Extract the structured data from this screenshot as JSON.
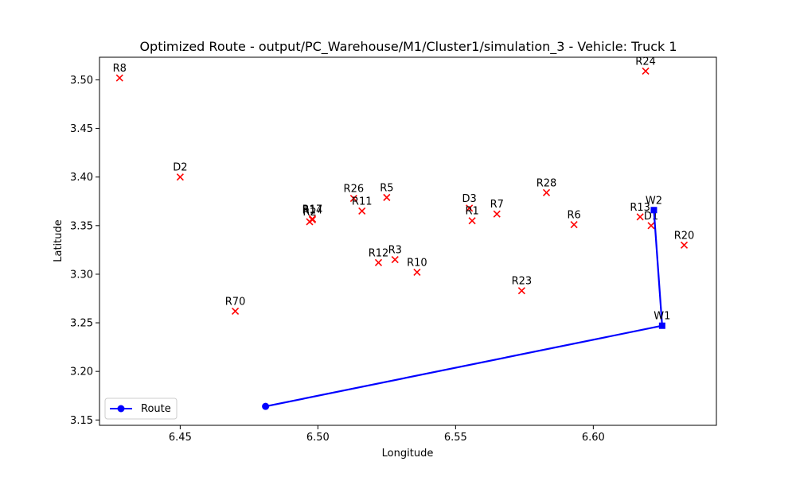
{
  "chart_data": {
    "type": "scatter",
    "title": "Optimized Route - output/PC_Warehouse/M1/Cluster1/simulation_3 - Vehicle: Truck 1",
    "xlabel": "Longitude",
    "ylabel": "Latitude",
    "xlim": [
      6.4207,
      6.6447
    ],
    "ylim": [
      3.1445,
      3.5233
    ],
    "xticks": [
      6.45,
      6.5,
      6.55,
      6.6
    ],
    "xtick_labels": [
      "6.45",
      "6.50",
      "6.55",
      "6.60"
    ],
    "yticks": [
      3.15,
      3.2,
      3.25,
      3.3,
      3.35,
      3.4,
      3.45,
      3.5
    ],
    "ytick_labels": [
      "3.15",
      "3.20",
      "3.25",
      "3.30",
      "3.35",
      "3.40",
      "3.45",
      "3.50"
    ],
    "grid": false,
    "legend_position": "lower-left",
    "colors": {
      "points": "#ff0000",
      "route": "#0000ff"
    },
    "points": [
      {
        "label": "R8",
        "x": 6.428,
        "y": 3.502
      },
      {
        "label": "R24",
        "x": 6.619,
        "y": 3.509
      },
      {
        "label": "D2",
        "x": 6.45,
        "y": 3.4
      },
      {
        "label": "R26",
        "x": 6.513,
        "y": 3.378
      },
      {
        "label": "R5",
        "x": 6.525,
        "y": 3.379
      },
      {
        "label": "R28",
        "x": 6.583,
        "y": 3.384
      },
      {
        "label": "D3",
        "x": 6.555,
        "y": 3.368
      },
      {
        "label": "R7",
        "x": 6.565,
        "y": 3.362
      },
      {
        "label": "R11",
        "x": 6.516,
        "y": 3.365
      },
      {
        "label": "R14",
        "x": 6.498,
        "y": 3.356
      },
      {
        "label": "R2",
        "x": 6.497,
        "y": 3.354
      },
      {
        "label": "R17",
        "x": 6.498,
        "y": 3.357
      },
      {
        "label": "R1",
        "x": 6.556,
        "y": 3.355
      },
      {
        "label": "R6",
        "x": 6.593,
        "y": 3.351
      },
      {
        "label": "R13",
        "x": 6.617,
        "y": 3.359
      },
      {
        "label": "D1",
        "x": 6.621,
        "y": 3.35
      },
      {
        "label": "R20",
        "x": 6.633,
        "y": 3.33
      },
      {
        "label": "R12",
        "x": 6.522,
        "y": 3.312
      },
      {
        "label": "R3",
        "x": 6.528,
        "y": 3.315
      },
      {
        "label": "R10",
        "x": 6.536,
        "y": 3.302
      },
      {
        "label": "R23",
        "x": 6.574,
        "y": 3.283
      },
      {
        "label": "R70",
        "x": 6.47,
        "y": 3.262
      }
    ],
    "route": {
      "name": "Route",
      "points": [
        {
          "x": 6.481,
          "y": 3.164,
          "label": ""
        },
        {
          "x": 6.625,
          "y": 3.247,
          "label": "W1"
        },
        {
          "x": 6.622,
          "y": 3.366,
          "label": "W2"
        }
      ]
    }
  }
}
